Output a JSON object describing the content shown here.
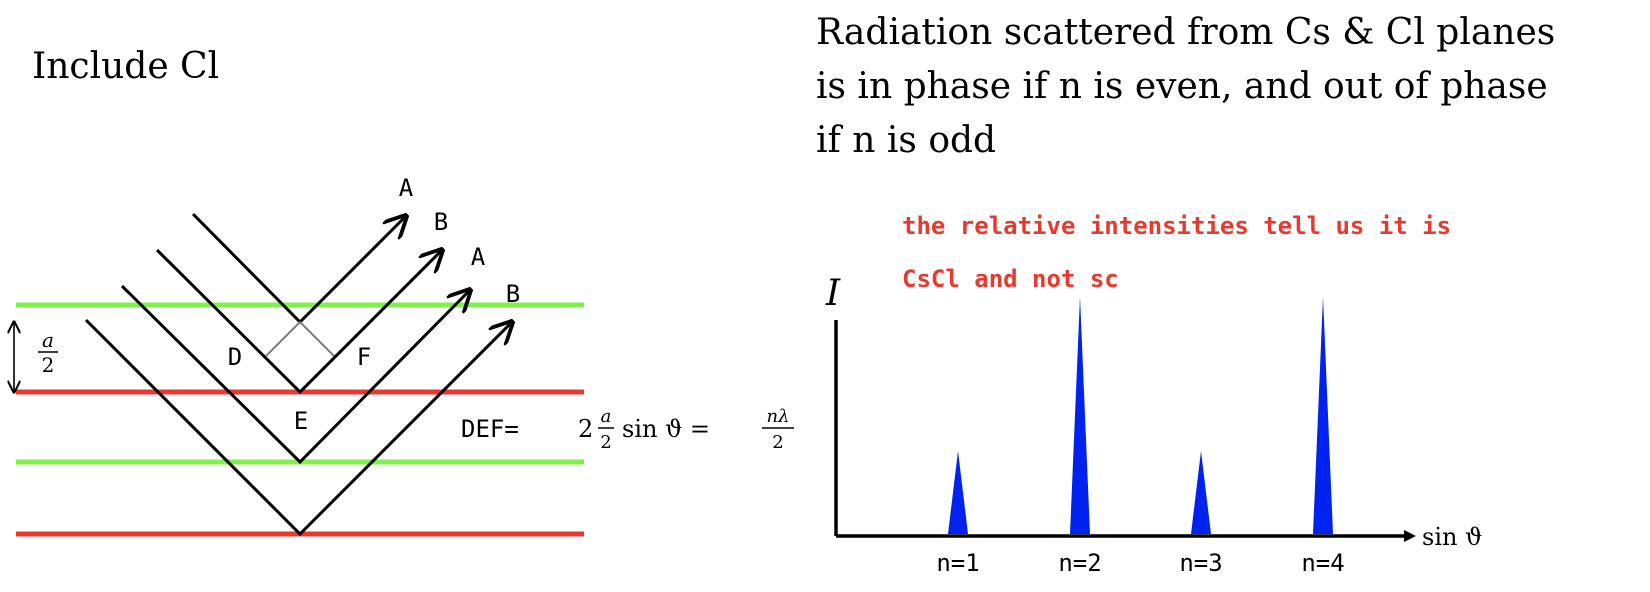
{
  "left_panel": {
    "heading": "Include Cl",
    "spacing_label": {
      "numerator": "a",
      "denominator": "2"
    },
    "point_labels": {
      "A1": "A",
      "B1": "B",
      "A2": "A",
      "B2": "B",
      "D": "D",
      "E": "E",
      "F": "F"
    },
    "equation": {
      "lhs": "DEF=",
      "coef": "2",
      "frac1_num": "a",
      "frac1_den": "2",
      "trig": "sin ϑ =",
      "frac2_num": "nλ",
      "frac2_den": "2"
    },
    "colors": {
      "cs_plane": "#7cf24a",
      "cl_plane": "#e8392f",
      "ray": "#000000",
      "construction": "#808080"
    }
  },
  "right_panel": {
    "caption_lines": [
      "Radiation scattered from Cs & Cl planes",
      "is in phase if n is even, and out of phase",
      "if n is odd"
    ],
    "note_lines": [
      "the relative intensities tell us it is",
      "CsCl and not sc"
    ],
    "note_color": "#e8392f",
    "peak_color": "#0022ee"
  },
  "chart_data": {
    "type": "bar",
    "ylabel": "I",
    "xlabel": "sin ϑ",
    "categories": [
      "n=1",
      "n=2",
      "n=3",
      "n=4"
    ],
    "values": [
      0.35,
      1.0,
      0.35,
      1.0
    ],
    "ylim": [
      0,
      1.05
    ],
    "grid": false
  }
}
